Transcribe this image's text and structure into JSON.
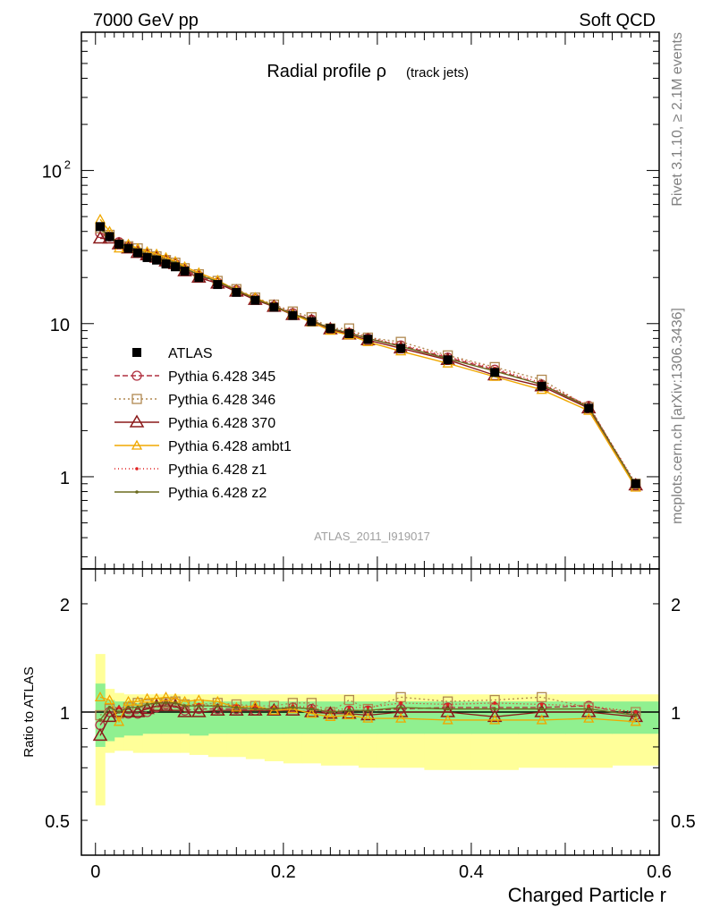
{
  "header": {
    "left": "7000 GeV pp",
    "right": "Soft QCD"
  },
  "side_labels": {
    "rivet": "Rivet 3.1.10, ≥ 2.1M events",
    "mcplots": "mcplots.cern.ch [arXiv:1306.3436]"
  },
  "watermark": "ATLAS_2011_I919017",
  "colors": {
    "atlas": "#000000",
    "p345": "#b03040",
    "p346": "#b08850",
    "p370": "#8b1a1a",
    "ambt1": "#f0a800",
    "z1": "#e02020",
    "z2": "#6b6b1e",
    "band_inner": "#90f090",
    "band_outer": "#ffff99"
  },
  "chart_data": [
    {
      "type": "line",
      "title": "Radial profile ρ",
      "title_suffix": "(track jets)",
      "xlabel": "",
      "ylabel": "",
      "yscale": "log",
      "xlim": [
        -0.015,
        0.6
      ],
      "ylim": [
        0.25,
        800
      ],
      "yticks": [
        {
          "v": 1,
          "label": "1"
        },
        {
          "v": 10,
          "label": "10"
        },
        {
          "v": 100,
          "label": "10",
          "sup": "2"
        }
      ],
      "legend_position": "left-middle",
      "x": [
        0.005,
        0.015,
        0.025,
        0.035,
        0.045,
        0.055,
        0.065,
        0.075,
        0.085,
        0.095,
        0.11,
        0.13,
        0.15,
        0.17,
        0.19,
        0.21,
        0.23,
        0.25,
        0.27,
        0.29,
        0.325,
        0.375,
        0.425,
        0.475,
        0.525,
        0.575
      ],
      "series": [
        {
          "name": "ATLAS",
          "key": "atlas",
          "marker": "filled-square",
          "dash": "none",
          "values": [
            43,
            37,
            33,
            31,
            29,
            27,
            26,
            24.5,
            23.5,
            22,
            20,
            18,
            16,
            14.2,
            12.8,
            11.3,
            10.3,
            9.3,
            8.6,
            7.9,
            6.9,
            5.8,
            4.8,
            3.9,
            2.8,
            0.9
          ]
        },
        {
          "name": "Pythia 6.428 345",
          "key": "p345",
          "marker": "open-circle",
          "dash": "6,3",
          "values": [
            39,
            37,
            34,
            32,
            29,
            28,
            27,
            26,
            24.5,
            22.5,
            20.5,
            18.5,
            16.5,
            14.5,
            13,
            11.7,
            10.6,
            9.2,
            8.7,
            8,
            7.2,
            6,
            5,
            4,
            2.9,
            0.88
          ]
        },
        {
          "name": "Pythia 6.428 346",
          "key": "p346",
          "marker": "open-square",
          "dash": "2,3",
          "values": [
            42,
            38,
            33,
            32,
            31,
            28.5,
            27.5,
            26,
            25,
            23,
            21,
            19,
            16.8,
            14.8,
            13.3,
            12,
            11,
            9.3,
            9.3,
            8.1,
            7.6,
            6.2,
            5.2,
            4.3,
            2.85,
            0.9
          ]
        },
        {
          "name": "Pythia 6.428 370",
          "key": "p370",
          "marker": "open-triangle",
          "dash": "none",
          "values": [
            36,
            36,
            33,
            31,
            29,
            28,
            27,
            25.5,
            24.5,
            22,
            20,
            18.3,
            16.2,
            14.3,
            12.9,
            11.4,
            10.4,
            9.2,
            8.5,
            7.8,
            6.9,
            5.8,
            4.6,
            3.9,
            2.8,
            0.88
          ]
        },
        {
          "name": "Pythia 6.428 ambt1",
          "key": "ambt1",
          "marker": "open-triangle-small",
          "dash": "none",
          "values": [
            48,
            40,
            31,
            33,
            31,
            29.5,
            28.5,
            27,
            25.5,
            23.5,
            21.5,
            19.2,
            16.5,
            14.8,
            13,
            11.5,
            10.2,
            9,
            8.4,
            7.6,
            6.6,
            5.5,
            4.5,
            3.7,
            2.7,
            0.85
          ]
        },
        {
          "name": "Pythia 6.428 z1",
          "key": "z1",
          "marker": "dot",
          "dash": "1,3",
          "values": [
            41,
            38,
            34,
            32,
            30,
            28.5,
            27.5,
            26,
            25,
            23,
            21,
            18.8,
            16.6,
            14.6,
            13.1,
            11.8,
            10.6,
            9.3,
            8.9,
            8.1,
            7.3,
            6.1,
            5.1,
            4.1,
            2.9,
            0.9
          ]
        },
        {
          "name": "Pythia 6.428 z2",
          "key": "z2",
          "marker": "dot",
          "dash": "none",
          "values": [
            41,
            38,
            33,
            32,
            30,
            28.5,
            27.5,
            26,
            25,
            23,
            20.8,
            18.8,
            16.5,
            14.5,
            13,
            11.6,
            10.5,
            9.3,
            8.7,
            8,
            7.1,
            5.9,
            4.9,
            4,
            2.85,
            0.88
          ]
        }
      ]
    },
    {
      "type": "line",
      "title": "",
      "xlabel": "Charged Particle r",
      "ylabel": "Ratio to ATLAS",
      "yscale": "log",
      "xlim": [
        -0.015,
        0.6
      ],
      "ylim": [
        0.4,
        2.5
      ],
      "yticks": [
        {
          "v": 0.5,
          "label": "0.5"
        },
        {
          "v": 1,
          "label": "1"
        },
        {
          "v": 2,
          "label": "2"
        }
      ],
      "xticks": [
        0,
        0.2,
        0.4,
        0.6
      ],
      "xticklabels": [
        "0",
        "0.2",
        "0.4",
        "0.6"
      ],
      "band_edges": [
        0,
        0.01,
        0.02,
        0.03,
        0.04,
        0.05,
        0.06,
        0.07,
        0.08,
        0.09,
        0.1,
        0.12,
        0.14,
        0.16,
        0.18,
        0.2,
        0.22,
        0.24,
        0.26,
        0.28,
        0.3,
        0.35,
        0.4,
        0.45,
        0.5,
        0.55,
        0.6
      ],
      "band_inner": [
        [
          0.8,
          1.2
        ],
        [
          0.83,
          1.08
        ],
        [
          0.85,
          1.07
        ],
        [
          0.86,
          1.07
        ],
        [
          0.86,
          1.06
        ],
        [
          0.87,
          1.06
        ],
        [
          0.87,
          1.07
        ],
        [
          0.87,
          1.07
        ],
        [
          0.87,
          1.06
        ],
        [
          0.87,
          1.07
        ],
        [
          0.86,
          1.07
        ],
        [
          0.87,
          1.07
        ],
        [
          0.87,
          1.07
        ],
        [
          0.87,
          1.07
        ],
        [
          0.87,
          1.07
        ],
        [
          0.87,
          1.07
        ],
        [
          0.87,
          1.07
        ],
        [
          0.87,
          1.07
        ],
        [
          0.87,
          1.07
        ],
        [
          0.87,
          1.07
        ],
        [
          0.87,
          1.07
        ],
        [
          0.87,
          1.07
        ],
        [
          0.87,
          1.07
        ],
        [
          0.87,
          1.07
        ],
        [
          0.87,
          1.07
        ],
        [
          0.87,
          1.07
        ]
      ],
      "band_outer": [
        [
          0.55,
          1.45
        ],
        [
          0.77,
          1.16
        ],
        [
          0.78,
          1.13
        ],
        [
          0.78,
          1.12
        ],
        [
          0.77,
          1.12
        ],
        [
          0.77,
          1.12
        ],
        [
          0.77,
          1.12
        ],
        [
          0.77,
          1.12
        ],
        [
          0.77,
          1.12
        ],
        [
          0.77,
          1.12
        ],
        [
          0.76,
          1.12
        ],
        [
          0.75,
          1.12
        ],
        [
          0.75,
          1.12
        ],
        [
          0.74,
          1.12
        ],
        [
          0.73,
          1.12
        ],
        [
          0.72,
          1.12
        ],
        [
          0.72,
          1.12
        ],
        [
          0.71,
          1.12
        ],
        [
          0.71,
          1.12
        ],
        [
          0.7,
          1.12
        ],
        [
          0.7,
          1.12
        ],
        [
          0.69,
          1.12
        ],
        [
          0.69,
          1.12
        ],
        [
          0.7,
          1.12
        ],
        [
          0.7,
          1.12
        ],
        [
          0.71,
          1.12
        ]
      ],
      "series": [
        {
          "name": "Pythia 6.428 345",
          "key": "p345",
          "values": [
            0.92,
            1.0,
            1.0,
            0.99,
            0.99,
            1.0,
            1.03,
            1.05,
            1.06,
            1.01,
            1.02,
            1.02,
            1.02,
            1.01,
            1.01,
            1.03,
            1.02,
            0.99,
            1.01,
            1.01,
            1.02,
            1.03,
            1.03,
            1.03,
            1.04,
            0.98
          ]
        },
        {
          "name": "Pythia 6.428 346",
          "key": "p346",
          "values": [
            0.98,
            1.02,
            0.99,
            1.03,
            1.06,
            1.05,
            1.06,
            1.06,
            1.07,
            1.05,
            1.05,
            1.06,
            1.05,
            1.04,
            1.04,
            1.06,
            1.06,
            1.0,
            1.08,
            1.02,
            1.1,
            1.07,
            1.08,
            1.1,
            1.03,
            1.0
          ]
        },
        {
          "name": "Pythia 6.428 370",
          "key": "p370",
          "values": [
            0.86,
            0.97,
            1.0,
            1.0,
            1.0,
            1.02,
            1.04,
            1.04,
            1.04,
            1.0,
            1.0,
            1.01,
            1.01,
            1.01,
            1.01,
            1.01,
            1.0,
            0.99,
            0.99,
            0.98,
            1.0,
            1.0,
            0.97,
            1.0,
            1.0,
            0.97
          ]
        },
        {
          "name": "Pythia 6.428 ambt1",
          "key": "ambt1",
          "values": [
            1.1,
            1.08,
            0.94,
            1.07,
            1.07,
            1.09,
            1.09,
            1.1,
            1.09,
            1.07,
            1.08,
            1.07,
            1.03,
            1.04,
            1.01,
            1.02,
            0.99,
            0.97,
            0.98,
            0.96,
            0.96,
            0.95,
            0.95,
            0.95,
            0.96,
            0.94
          ]
        },
        {
          "name": "Pythia 6.428 z1",
          "key": "z1",
          "values": [
            0.95,
            1.03,
            1.03,
            1.03,
            1.03,
            1.05,
            1.06,
            1.06,
            1.06,
            1.04,
            1.05,
            1.04,
            1.04,
            1.03,
            1.02,
            1.04,
            1.03,
            1.0,
            1.03,
            1.03,
            1.06,
            1.05,
            1.06,
            1.05,
            1.04,
            1.0
          ]
        },
        {
          "name": "Pythia 6.428 z2",
          "key": "z2",
          "values": [
            0.95,
            1.03,
            1.0,
            1.03,
            1.03,
            1.05,
            1.06,
            1.06,
            1.06,
            1.04,
            1.04,
            1.04,
            1.03,
            1.02,
            1.02,
            1.03,
            1.02,
            1.0,
            1.01,
            1.01,
            1.03,
            1.02,
            1.02,
            1.02,
            1.02,
            0.98
          ]
        }
      ]
    }
  ]
}
